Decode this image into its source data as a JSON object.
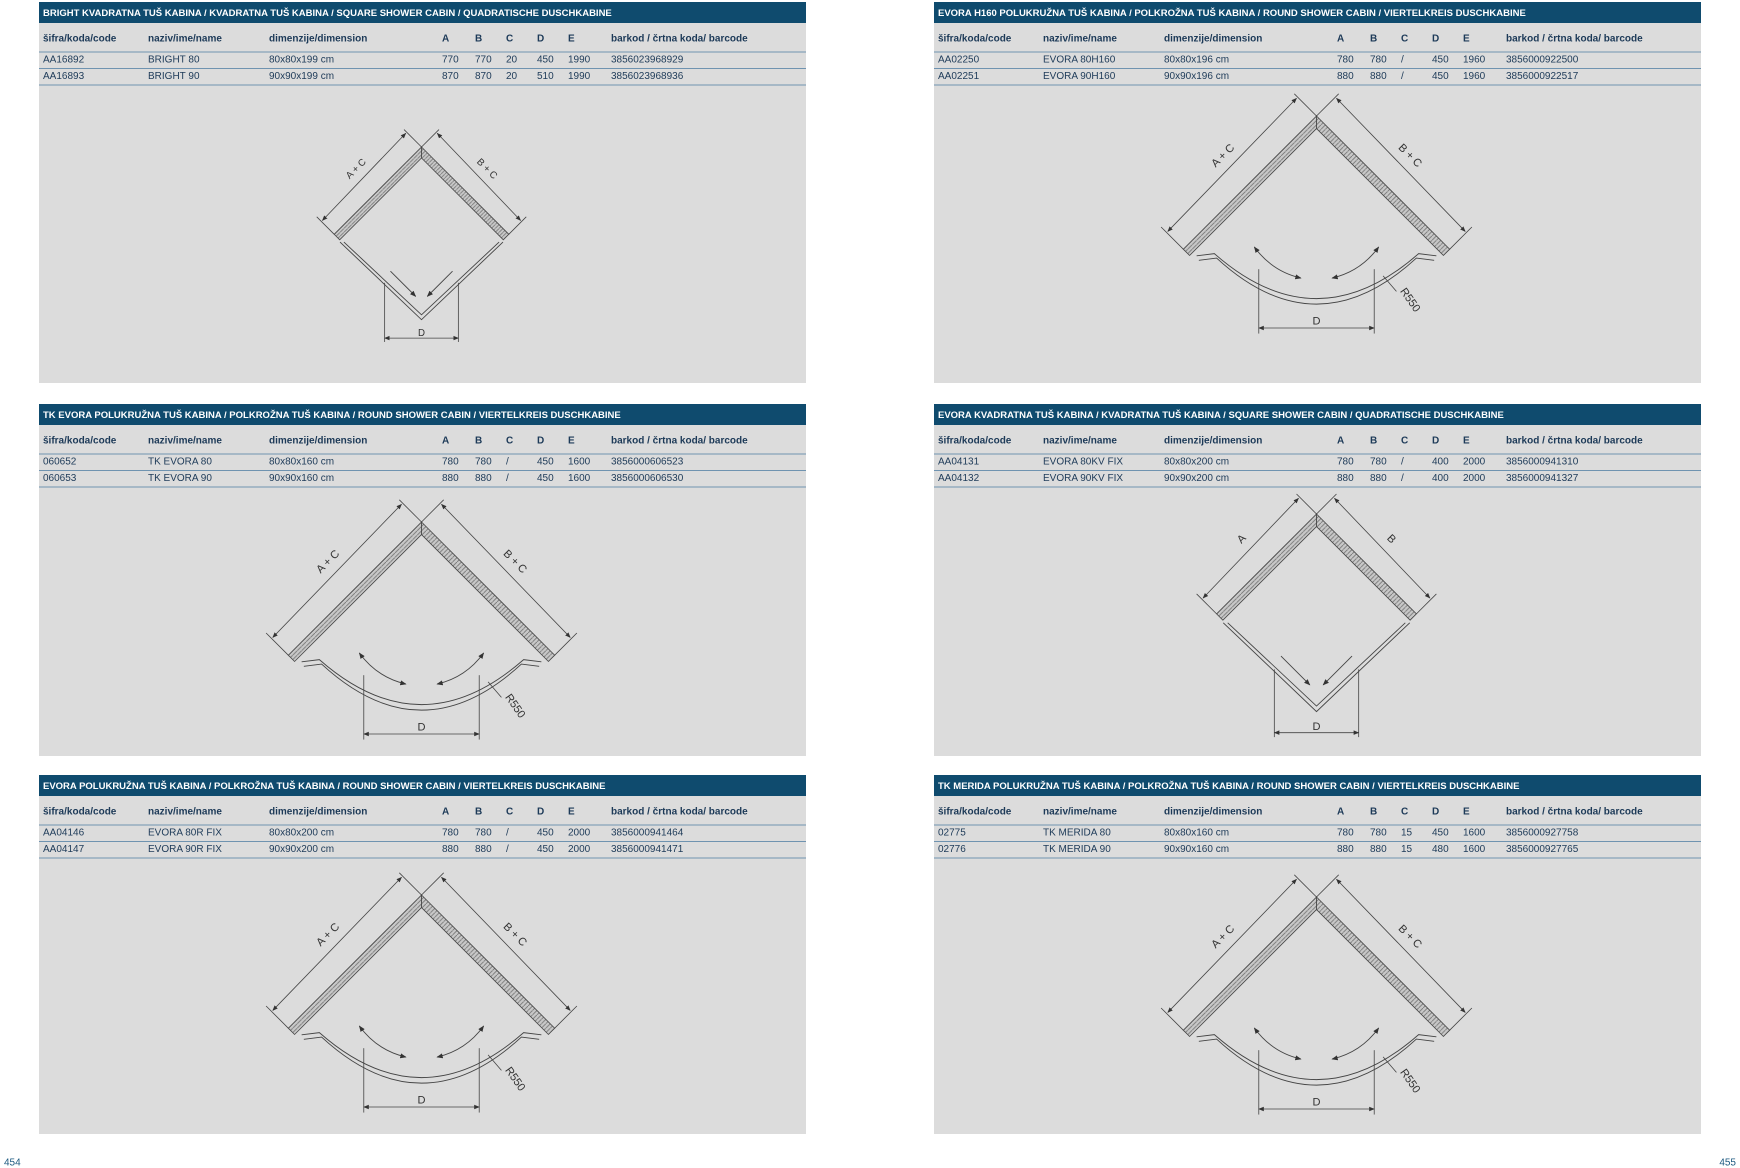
{
  "pages": [
    "454",
    "455"
  ],
  "panels": [
    {
      "title": "BRIGHT KVADRATNA TUŠ KABINA / KVADRATNA TUŠ KABINA / SQUARE SHOWER CABIN / QUADRATISCHE DUSCHKABINE",
      "columns": [
        "šifra/koda/code",
        "naziv/ime/name",
        "dimenzije/dimension",
        "A",
        "B",
        "C",
        "D",
        "E",
        "barkod / črtna koda/ barcode"
      ],
      "rows": [
        [
          "AA16892",
          "BRIGHT 80",
          "80x80x199 cm",
          "770",
          "770",
          "20",
          "450",
          "1990",
          "3856023968929"
        ],
        [
          "AA16893",
          "BRIGHT 90",
          "90x90x199 cm",
          "870",
          "870",
          "20",
          "510",
          "1990",
          "3856023968936"
        ]
      ],
      "diagram": {
        "left": "A + C",
        "right": "B + C",
        "bottom": "D"
      }
    },
    {
      "title": "EVORA H160 POLUKRUŽNA TUŠ KABINA / POLKROŽNA TUŠ KABINA / ROUND SHOWER CABIN / VIERTELKREIS DUSCHKABINE",
      "columns": [
        "šifra/koda/code",
        "naziv/ime/name",
        "dimenzije/dimension",
        "A",
        "B",
        "C",
        "D",
        "E",
        "barkod / črtna koda/ barcode"
      ],
      "rows": [
        [
          "AA02250",
          "EVORA 80H160",
          "80x80x196 cm",
          "780",
          "780",
          "/",
          "450",
          "1960",
          "3856000922500"
        ],
        [
          "AA02251",
          "EVORA 90H160",
          "90x90x196 cm",
          "880",
          "880",
          "/",
          "450",
          "1960",
          "3856000922517"
        ]
      ],
      "diagram": {
        "left": "A + C",
        "right": "B + C",
        "bottom": "D",
        "radius": "R550"
      }
    },
    {
      "title": "TK EVORA POLUKRUŽNA TUŠ KABINA / POLKROŽNA TUŠ KABINA / ROUND SHOWER CABIN / VIERTELKREIS DUSCHKABINE",
      "columns": [
        "šifra/koda/code",
        "naziv/ime/name",
        "dimenzije/dimension",
        "A",
        "B",
        "C",
        "D",
        "E",
        "barkod / črtna koda/ barcode"
      ],
      "rows": [
        [
          "060652",
          "TK EVORA 80",
          "80x80x160 cm",
          "780",
          "780",
          "/",
          "450",
          "1600",
          "3856000606523"
        ],
        [
          "060653",
          "TK EVORA 90",
          "90x90x160 cm",
          "880",
          "880",
          "/",
          "450",
          "1600",
          "3856000606530"
        ]
      ],
      "diagram": {
        "left": "A + C",
        "right": "B + C",
        "bottom": "D",
        "radius": "R550"
      }
    },
    {
      "title": "EVORA KVADRATNA TUŠ KABINA / KVADRATNA TUŠ KABINA / SQUARE SHOWER CABIN / QUADRATISCHE DUSCHKABINE",
      "columns": [
        "šifra/koda/code",
        "naziv/ime/name",
        "dimenzije/dimension",
        "A",
        "B",
        "C",
        "D",
        "E",
        "barkod / črtna koda/ barcode"
      ],
      "rows": [
        [
          "AA04131",
          "EVORA 80KV FIX",
          "80x80x200 cm",
          "780",
          "780",
          "/",
          "400",
          "2000",
          "3856000941310"
        ],
        [
          "AA04132",
          "EVORA 90KV FIX",
          "90x90x200 cm",
          "880",
          "880",
          "/",
          "400",
          "2000",
          "3856000941327"
        ]
      ],
      "diagram": {
        "left": "A",
        "right": "B",
        "bottom": "D"
      }
    },
    {
      "title": "EVORA POLUKRUŽNA TUŠ KABINA / POLKROŽNA TUŠ KABINA / ROUND SHOWER CABIN / VIERTELKREIS DUSCHKABINE",
      "columns": [
        "šifra/koda/code",
        "naziv/ime/name",
        "dimenzije/dimension",
        "A",
        "B",
        "C",
        "D",
        "E",
        "barkod / črtna koda/ barcode"
      ],
      "rows": [
        [
          "AA04146",
          "EVORA 80R FIX",
          "80x80x200 cm",
          "780",
          "780",
          "/",
          "450",
          "2000",
          "3856000941464"
        ],
        [
          "AA04147",
          "EVORA 90R FIX",
          "90x90x200 cm",
          "880",
          "880",
          "/",
          "450",
          "2000",
          "3856000941471"
        ]
      ],
      "diagram": {
        "left": "A + C",
        "right": "B + C",
        "bottom": "D",
        "radius": "R550"
      }
    },
    {
      "title": "TK MERIDA POLUKRUŽNA TUŠ KABINA / POLKROŽNA TUŠ KABINA / ROUND SHOWER CABIN / VIERTELKREIS DUSCHKABINE",
      "columns": [
        "šifra/koda/code",
        "naziv/ime/name",
        "dimenzije/dimension",
        "A",
        "B",
        "C",
        "D",
        "E",
        "barkod / črtna koda/ barcode"
      ],
      "rows": [
        [
          "02775",
          "TK MERIDA 80",
          "80x80x160 cm",
          "780",
          "780",
          "15",
          "450",
          "1600",
          "3856000927758"
        ],
        [
          "02776",
          "TK MERIDA 90",
          "90x90x160 cm",
          "880",
          "880",
          "15",
          "480",
          "1600",
          "3856000927765"
        ]
      ],
      "diagram": {
        "left": "A + C",
        "right": "B + C",
        "bottom": "D",
        "radius": "R550"
      }
    }
  ]
}
